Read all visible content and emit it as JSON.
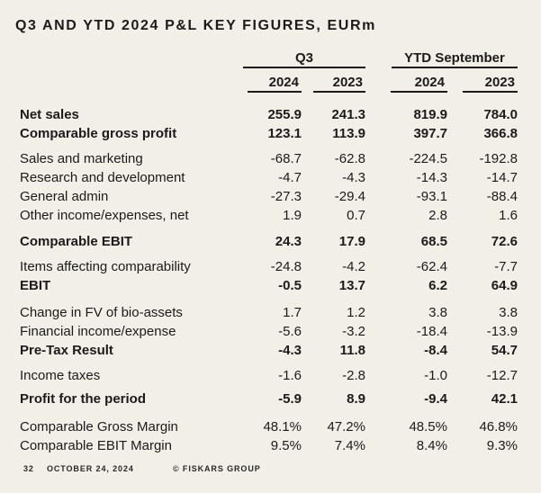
{
  "title": "Q3 AND YTD 2024 P&L KEY FIGURES, EURm",
  "table": {
    "column_groups": [
      {
        "label": "Q3"
      },
      {
        "label": "YTD September"
      }
    ],
    "year_headers": [
      "2024",
      "2023",
      "2024",
      "2023"
    ],
    "rows": [
      {
        "type": "data",
        "bold": true,
        "label": "Net sales",
        "values": [
          "255.9",
          "241.3",
          "819.9",
          "784.0"
        ]
      },
      {
        "type": "data",
        "bold": true,
        "label": "Comparable gross profit",
        "values": [
          "123.1",
          "113.9",
          "397.7",
          "366.8"
        ]
      },
      {
        "type": "gap",
        "height": 7
      },
      {
        "type": "data",
        "bold": false,
        "label": "Sales and marketing",
        "values": [
          "-68.7",
          "-62.8",
          "-224.5",
          "-192.8"
        ]
      },
      {
        "type": "data",
        "bold": false,
        "label": "Research and development",
        "values": [
          "-4.7",
          "-4.3",
          "-14.3",
          "-14.7"
        ]
      },
      {
        "type": "data",
        "bold": false,
        "label": "General admin",
        "values": [
          "-27.3",
          "-29.4",
          "-93.1",
          "-88.4"
        ]
      },
      {
        "type": "data",
        "bold": false,
        "label": "Other income/expenses, net",
        "values": [
          "1.9",
          "0.7",
          "2.8",
          "1.6"
        ]
      },
      {
        "type": "gap",
        "height": 8
      },
      {
        "type": "data",
        "bold": true,
        "label": "Comparable EBIT",
        "values": [
          "24.3",
          "17.9",
          "68.5",
          "72.6"
        ]
      },
      {
        "type": "gap",
        "height": 7
      },
      {
        "type": "data",
        "bold": false,
        "label": "Items affecting comparability",
        "values": [
          "-24.8",
          "-4.2",
          "-62.4",
          "-7.7"
        ]
      },
      {
        "type": "data",
        "bold": true,
        "label": "EBIT",
        "values": [
          "-0.5",
          "13.7",
          "6.2",
          "64.9"
        ]
      },
      {
        "type": "gap",
        "height": 9
      },
      {
        "type": "data",
        "bold": false,
        "label": "Change in FV of bio-assets",
        "values": [
          "1.7",
          "1.2",
          "3.8",
          "3.8"
        ]
      },
      {
        "type": "data",
        "bold": false,
        "label": "Financial income/expense",
        "values": [
          "-5.6",
          "-3.2",
          "-18.4",
          "-13.9"
        ]
      },
      {
        "type": "data",
        "bold": true,
        "label": "Pre-Tax Result",
        "values": [
          "-4.3",
          "11.8",
          "-8.4",
          "54.7"
        ]
      },
      {
        "type": "gap",
        "height": 7
      },
      {
        "type": "data",
        "bold": false,
        "label": "Income taxes",
        "values": [
          "-1.6",
          "-2.8",
          "-1.0",
          "-12.7"
        ]
      },
      {
        "type": "gap",
        "height": 5
      },
      {
        "type": "data",
        "bold": true,
        "label": "Profit for the period",
        "values": [
          "-5.9",
          "8.9",
          "-9.4",
          "42.1"
        ]
      },
      {
        "type": "gap",
        "height": 10
      },
      {
        "type": "data",
        "bold": false,
        "label": "Comparable Gross Margin",
        "values": [
          "48.1%",
          "47.2%",
          "48.5%",
          "46.8%"
        ]
      },
      {
        "type": "data",
        "bold": false,
        "label": "Comparable EBIT Margin",
        "values": [
          "9.5%",
          "7.4%",
          "8.4%",
          "9.3%"
        ]
      }
    ]
  },
  "footer": {
    "page_number": "32",
    "date": "OCTOBER 24, 2024",
    "copyright": "© FISKARS GROUP"
  },
  "colors": {
    "background": "#f2eee8",
    "text": "#1c1b1a",
    "rule": "#1c1b1a"
  }
}
